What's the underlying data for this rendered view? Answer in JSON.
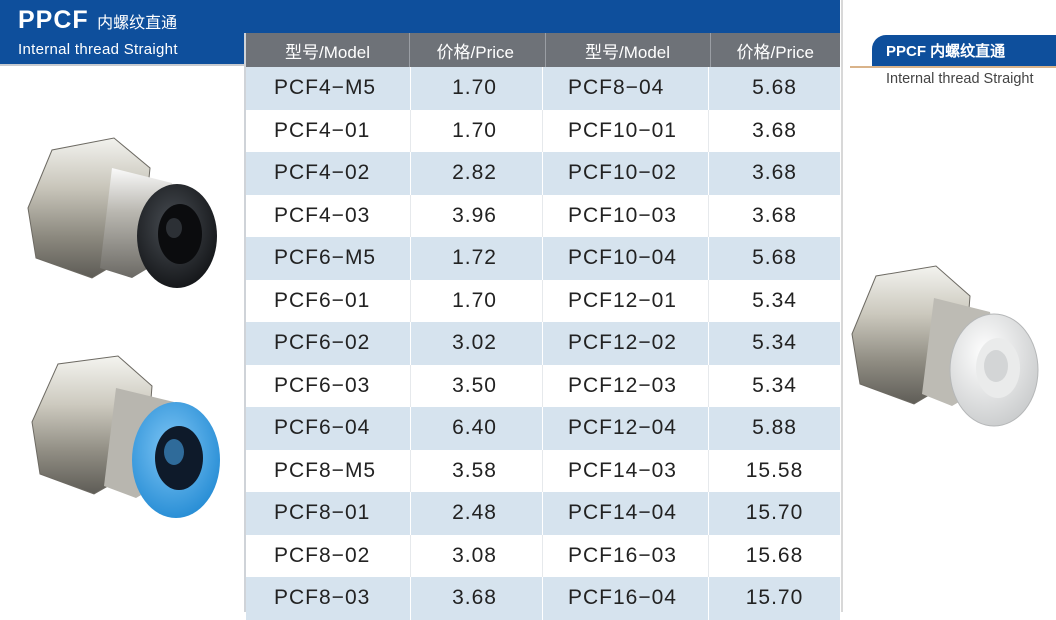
{
  "header": {
    "title_en": "PPCF",
    "title_cn": "内螺纹直通",
    "subtitle": "Internal thread Straight"
  },
  "table": {
    "headers": [
      "型号/Model",
      "价格/Price",
      "型号/Model",
      "价格/Price"
    ],
    "rows": [
      [
        "PCF4−M5",
        "1.70",
        "PCF8−04",
        "5.68"
      ],
      [
        "PCF4−01",
        "1.70",
        "PCF10−01",
        "3.68"
      ],
      [
        "PCF4−02",
        "2.82",
        "PCF10−02",
        "3.68"
      ],
      [
        "PCF4−03",
        "3.96",
        "PCF10−03",
        "3.68"
      ],
      [
        "PCF6−M5",
        "1.72",
        "PCF10−04",
        "5.68"
      ],
      [
        "PCF6−01",
        "1.70",
        "PCF12−01",
        "5.34"
      ],
      [
        "PCF6−02",
        "3.02",
        "PCF12−02",
        "5.34"
      ],
      [
        "PCF6−03",
        "3.50",
        "PCF12−03",
        "5.34"
      ],
      [
        "PCF6−04",
        "6.40",
        "PCF12−04",
        "5.88"
      ],
      [
        "PCF8−M5",
        "3.58",
        "PCF14−03",
        "15.58"
      ],
      [
        "PCF8−01",
        "2.48",
        "PCF14−04",
        "15.70"
      ],
      [
        "PCF8−02",
        "3.08",
        "PCF16−03",
        "15.68"
      ],
      [
        "PCF8−03",
        "3.68",
        "PCF16−04",
        "15.70"
      ]
    ]
  },
  "side_tag": {
    "title": "PPCF 内螺纹直通",
    "subtitle": "Internal thread Straight"
  },
  "colors": {
    "brand_blue": "#0e4f9c",
    "row_tint": "#d6e3ee",
    "header_gray": "#6e7278"
  }
}
